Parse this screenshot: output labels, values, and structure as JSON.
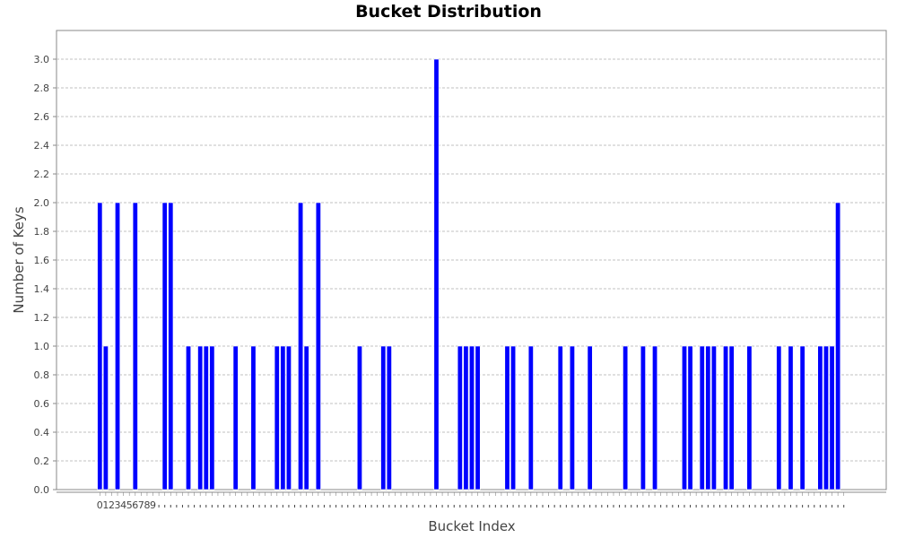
{
  "chart_data": {
    "type": "bar",
    "title": "Bucket Distribution",
    "xlabel": "Bucket Index",
    "ylabel": "Number of Keys",
    "ylim": [
      0,
      3.2
    ],
    "yticks": [
      "0.0",
      "0.2",
      "0.4",
      "0.6",
      "0.8",
      "1.0",
      "1.2",
      "1.4",
      "1.6",
      "1.8",
      "2.0",
      "2.2",
      "2.4",
      "2.6",
      "2.8",
      "3.0"
    ],
    "xtick_labels": [
      "0",
      "1",
      "2",
      "3",
      "4",
      "5",
      "6",
      "7",
      "8",
      "9"
    ],
    "bucket_count": 127,
    "grid": true,
    "bar_color": "#0000ff",
    "values": [
      2,
      1,
      0,
      2,
      0,
      0,
      2,
      0,
      0,
      0,
      0,
      2,
      2,
      0,
      0,
      1,
      0,
      1,
      1,
      1,
      0,
      0,
      0,
      1,
      0,
      0,
      1,
      0,
      0,
      0,
      1,
      1,
      1,
      0,
      2,
      1,
      0,
      2,
      0,
      0,
      0,
      0,
      0,
      0,
      1,
      0,
      0,
      0,
      1,
      1,
      0,
      0,
      0,
      0,
      0,
      0,
      0,
      3,
      0,
      0,
      0,
      1,
      1,
      1,
      1,
      0,
      0,
      0,
      0,
      1,
      1,
      0,
      0,
      1,
      0,
      0,
      0,
      0,
      1,
      0,
      1,
      0,
      0,
      1,
      0,
      0,
      0,
      0,
      0,
      1,
      0,
      0,
      1,
      0,
      1,
      0,
      0,
      0,
      0,
      1,
      1,
      0,
      1,
      1,
      1,
      0,
      1,
      1,
      0,
      0,
      1,
      0,
      0,
      0,
      0,
      1,
      0,
      1,
      0,
      1,
      0,
      0,
      1,
      1,
      1,
      2,
      0
    ]
  }
}
